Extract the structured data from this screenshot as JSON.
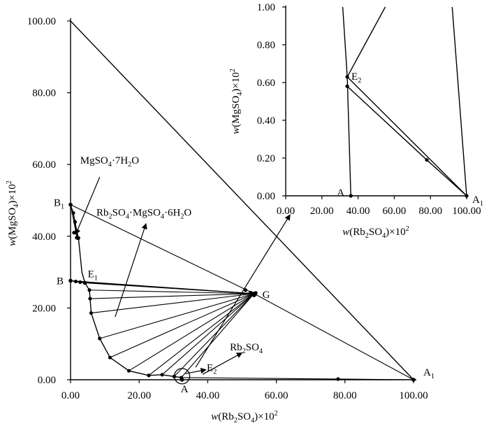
{
  "chart_data": [
    {
      "type": "scatter",
      "panel": "main",
      "xlabel": {
        "pre": "w",
        "rest": "(Rb",
        "s1": "2",
        "mid": "SO",
        "s2": "4",
        "post": ")×10",
        "sup": "2"
      },
      "ylabel": {
        "pre": "w",
        "rest": "(MgSO",
        "s1": "4",
        "post": ")×10",
        "sup": "2"
      },
      "xlim": [
        0,
        100
      ],
      "ylim": [
        0,
        100
      ],
      "x_ticks": [
        "0.00",
        "20.00",
        "40.00",
        "60.00",
        "80.00",
        "100.00"
      ],
      "x_tick_values": [
        0,
        20,
        40,
        60,
        80,
        100
      ],
      "y_ticks": [
        "0.00",
        "20.00",
        "40.00",
        "60.00",
        "80.00",
        "100.00"
      ],
      "y_tick_values": [
        0,
        20,
        40,
        60,
        80,
        100
      ],
      "grid": false,
      "triangle": [
        [
          0,
          100
        ],
        [
          100,
          0
        ],
        [
          0,
          0
        ]
      ],
      "invariant_points": [
        {
          "label": "B",
          "sub": "1",
          "x": 0,
          "y": 48.8
        },
        {
          "label": "B",
          "sub": "",
          "x": 0,
          "y": 27.6
        },
        {
          "label": "E",
          "sub": "1",
          "x": 4.2,
          "y": 27.0
        },
        {
          "label": "G",
          "sub": "",
          "x": 53.5,
          "y": 24.0
        },
        {
          "label": "A",
          "sub": "",
          "x": 32.5,
          "y": 0
        },
        {
          "label": "A",
          "sub": "1",
          "x": 100,
          "y": 0
        }
      ],
      "solubility_curve": [
        [
          0,
          48.8
        ],
        [
          0.8,
          46.5
        ],
        [
          1.3,
          44
        ],
        [
          1.8,
          41.5
        ],
        [
          2.3,
          39.5
        ],
        [
          3.0,
          33
        ],
        [
          3.3,
          30
        ],
        [
          4.2,
          27.0
        ],
        [
          5.5,
          25.0
        ],
        [
          5.7,
          22.6
        ],
        [
          6.0,
          18.6
        ],
        [
          8.5,
          11.5
        ],
        [
          11.5,
          6.2
        ],
        [
          17,
          2.5
        ],
        [
          22.8,
          1.2
        ],
        [
          26.7,
          1.4
        ],
        [
          30.2,
          0.9
        ],
        [
          32.3,
          0.6
        ],
        [
          32.5,
          0
        ]
      ],
      "liquid_points": [
        [
          0,
          48.8
        ],
        [
          0.8,
          46.5
        ],
        [
          1.3,
          44
        ],
        [
          1.8,
          41.5
        ],
        [
          2.3,
          39.5
        ],
        [
          0,
          27.6
        ],
        [
          1.5,
          27.4
        ],
        [
          2.8,
          27.2
        ],
        [
          4.2,
          27.0
        ],
        [
          5.5,
          25.0
        ],
        [
          5.7,
          22.6
        ],
        [
          6.0,
          18.6
        ],
        [
          8.5,
          11.5
        ],
        [
          11.5,
          6.2
        ],
        [
          17,
          2.5
        ],
        [
          22.8,
          1.2
        ],
        [
          26.7,
          1.4
        ],
        [
          30.2,
          0.9
        ],
        [
          32.3,
          0.6
        ],
        [
          32.5,
          0
        ],
        [
          78,
          0.19
        ]
      ],
      "solid_points": [
        [
          51.0,
          25.0
        ],
        [
          52.5,
          24.3
        ],
        [
          53.2,
          24.0
        ],
        [
          53.8,
          23.8
        ],
        [
          54.0,
          24.2
        ],
        [
          53.5,
          23.5
        ],
        [
          1.0,
          41.0
        ],
        [
          1.8,
          39.6
        ]
      ],
      "tie_lines": [
        [
          [
            4.2,
            27.0
          ],
          [
            53.5,
            24.0
          ]
        ],
        [
          [
            5.5,
            25.0
          ],
          [
            53.5,
            24.0
          ]
        ],
        [
          [
            5.7,
            22.6
          ],
          [
            53.5,
            24.0
          ]
        ],
        [
          [
            6.0,
            18.6
          ],
          [
            53.5,
            24.0
          ]
        ],
        [
          [
            8.5,
            11.5
          ],
          [
            53.5,
            24.0
          ]
        ],
        [
          [
            11.5,
            6.2
          ],
          [
            53.5,
            24.0
          ]
        ],
        [
          [
            17,
            2.5
          ],
          [
            53.5,
            24.0
          ]
        ],
        [
          [
            22.8,
            1.2
          ],
          [
            53.5,
            24.0
          ]
        ],
        [
          [
            26.7,
            1.4
          ],
          [
            53.5,
            24.0
          ]
        ],
        [
          [
            30.2,
            0.9
          ],
          [
            53.5,
            24.0
          ]
        ],
        [
          [
            32.3,
            0.6
          ],
          [
            53.5,
            24.0
          ]
        ],
        [
          [
            0,
            27.6
          ],
          [
            53.5,
            24.0
          ]
        ],
        [
          [
            1.5,
            27.4
          ],
          [
            53.5,
            24.0
          ]
        ],
        [
          [
            2.8,
            27.2
          ],
          [
            53.5,
            24.0
          ]
        ],
        [
          [
            0.8,
            46.5
          ],
          [
            2.0,
            39.0
          ]
        ],
        [
          [
            1.3,
            44
          ],
          [
            2.0,
            39.0
          ]
        ],
        [
          [
            1.8,
            41.5
          ],
          [
            2.0,
            39.0
          ]
        ],
        [
          [
            2.3,
            39.5
          ],
          [
            2.0,
            39.0
          ]
        ],
        [
          [
            0,
            48.8
          ],
          [
            2.0,
            39.0
          ]
        ],
        [
          [
            0,
            48.8
          ],
          [
            53.5,
            24.0
          ]
        ],
        [
          [
            53.5,
            24.0
          ],
          [
            100,
            0
          ]
        ],
        [
          [
            32.3,
            0.6
          ],
          [
            100,
            0
          ]
        ]
      ],
      "annotations": [
        {
          "text": "MgSO",
          "s1": "4",
          "mid": "·7H",
          "s2": "2",
          "post": "O",
          "anchor": [
            2.8,
            61.0
          ],
          "arrow_from": [
            8.5,
            56.5
          ],
          "arrow_to": [
            1.5,
            40.5
          ]
        },
        {
          "text": "Rb",
          "s1": "2",
          "mid": "SO",
          "s2": "4",
          "post": "·MgSO",
          "s3": "4",
          "post2": "·6H",
          "s4": "2",
          "post3": "O",
          "anchor": [
            5.5,
            46.5
          ],
          "arrow_from": [
            13,
            17.5
          ],
          "arrow_to": [
            22,
            43.5
          ]
        },
        {
          "text": "Rb",
          "s1": "2",
          "mid": "SO",
          "s2": "4",
          "post": "",
          "anchor": [
            48.5,
            9.0
          ],
          "arrow_from": [
            38.5,
            1.5
          ],
          "arrow_to": [
            50,
            7.5
          ]
        },
        {
          "text": "E",
          "s1": "2",
          "anchor": [
            38.5,
            3.4
          ],
          "arrow_from": [
            33.5,
            1.7
          ],
          "arrow_to": [
            39.5,
            2.8
          ]
        }
      ],
      "zoom_circle": {
        "x": 32.5,
        "y": 1.0
      },
      "zoom_arrow": {
        "from": [
          36.5,
          3.5
        ],
        "to": [
          64.0,
          46.0
        ]
      }
    },
    {
      "type": "line",
      "panel": "inset",
      "xlabel": {
        "pre": "w",
        "rest": "(Rb",
        "s1": "2",
        "mid": "SO",
        "s2": "4",
        "post": ")×10",
        "sup": "2"
      },
      "ylabel": {
        "pre": "w",
        "rest": "(MgSO",
        "s1": "4",
        "post": ")×10",
        "sup": "2"
      },
      "xlim": [
        0,
        100
      ],
      "ylim": [
        0,
        1
      ],
      "x_ticks": [
        "0.00",
        "20.00",
        "40.00",
        "60.00",
        "80.00",
        "100.00"
      ],
      "x_tick_values": [
        0,
        20,
        40,
        60,
        80,
        100
      ],
      "y_ticks": [
        "0.00",
        "0.20",
        "0.40",
        "0.60",
        "0.80",
        "1.00"
      ],
      "y_tick_values": [
        0,
        0.2,
        0.4,
        0.6,
        0.8,
        1.0
      ],
      "grid": false,
      "lines": [
        [
          [
            36.0,
            0
          ],
          [
            34.0,
            0.63
          ],
          [
            31.5,
            1.0
          ]
        ],
        [
          [
            34.0,
            0.63
          ],
          [
            55.0,
            1.0
          ]
        ],
        [
          [
            34.0,
            0.63
          ],
          [
            100,
            0
          ]
        ],
        [
          [
            34.0,
            0.58
          ],
          [
            78,
            0.19
          ],
          [
            100,
            0
          ]
        ],
        [
          [
            100,
            0
          ],
          [
            92.0,
            1.0
          ]
        ]
      ],
      "points": [
        {
          "label": "A",
          "sub": "",
          "x": 36.0,
          "y": 0
        },
        {
          "label": "E",
          "sub": "2",
          "x": 34.0,
          "y": 0.63
        },
        {
          "label": "",
          "sub": "",
          "x": 34.0,
          "y": 0.58
        },
        {
          "label": "",
          "sub": "",
          "x": 78,
          "y": 0.19
        },
        {
          "label": "A",
          "sub": "1",
          "x": 100,
          "y": 0
        }
      ]
    }
  ]
}
